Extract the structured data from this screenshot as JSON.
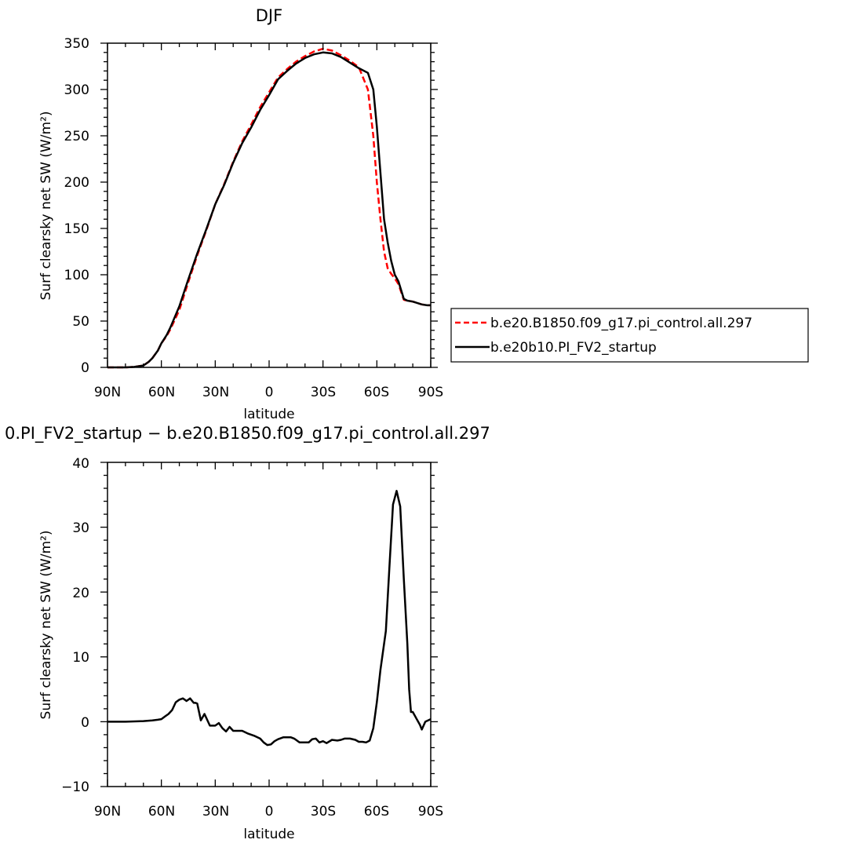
{
  "chart_data": [
    {
      "type": "line",
      "title": "DJF",
      "xlabel": "latitude",
      "ylabel": "Surf clearsky net SW (W/m²)",
      "xlim": [
        90,
        -90
      ],
      "ylim": [
        0,
        350
      ],
      "xticks": [
        90,
        60,
        30,
        0,
        -30,
        -60,
        -90
      ],
      "xtick_labels": [
        "90N",
        "60N",
        "30N",
        "0",
        "30S",
        "60S",
        "90S"
      ],
      "yticks": [
        0,
        50,
        100,
        150,
        200,
        250,
        300,
        350
      ],
      "ytick_labels": [
        "0",
        "50",
        "100",
        "150",
        "200",
        "250",
        "300",
        "350"
      ],
      "legend_position": "right",
      "series": [
        {
          "name": "b.e20.B1850.f09_g17.pi_control.all.297",
          "color": "#ff0000",
          "dashed": true,
          "x": [
            90,
            80,
            75,
            70,
            67,
            65,
            62,
            60,
            57,
            55,
            50,
            45,
            40,
            35,
            30,
            25,
            20,
            15,
            10,
            5,
            0,
            -5,
            -10,
            -15,
            -20,
            -25,
            -30,
            -35,
            -40,
            -45,
            -50,
            -55,
            -58,
            -60,
            -62,
            -64,
            -66,
            -68,
            -70,
            -72,
            -75,
            -77,
            -80,
            -85,
            -88,
            -90
          ],
          "y": [
            0,
            0,
            0.5,
            2,
            6,
            10,
            18,
            26,
            34,
            41,
            62,
            92,
            121,
            148,
            176,
            198,
            222,
            244,
            262,
            281,
            297,
            313,
            322,
            330,
            336,
            341,
            344,
            342,
            337,
            331,
            324,
            300,
            250,
            200,
            160,
            125,
            107,
            101,
            96,
            90,
            73,
            72,
            71,
            68,
            67,
            67
          ]
        },
        {
          "name": "b.e20b10.PI_FV2_startup",
          "color": "#000000",
          "dashed": false,
          "x": [
            90,
            80,
            75,
            70,
            67,
            65,
            62,
            60,
            57,
            55,
            50,
            45,
            40,
            35,
            30,
            25,
            20,
            15,
            10,
            5,
            0,
            -5,
            -10,
            -15,
            -20,
            -25,
            -30,
            -35,
            -40,
            -45,
            -50,
            -55,
            -58,
            -60,
            -62,
            -64,
            -66,
            -68,
            -70,
            -72,
            -75,
            -77,
            -80,
            -85,
            -88,
            -90
          ],
          "y": [
            0,
            0,
            0.5,
            2,
            6,
            10,
            18,
            26,
            35,
            43,
            66,
            95,
            123,
            149,
            176,
            197,
            221,
            242,
            259,
            278,
            294,
            311,
            320,
            328,
            334,
            338,
            340,
            339,
            335,
            329,
            323,
            318,
            300,
            260,
            210,
            160,
            135,
            115,
            100,
            93,
            74,
            72,
            71,
            68,
            67,
            67
          ]
        }
      ]
    },
    {
      "type": "line",
      "title": "0.PI_FV2_startup − b.e20.B1850.f09_g17.pi_control.all.297",
      "xlabel": "latitude",
      "ylabel": "Surf clearsky net SW (W/m²)",
      "xlim": [
        90,
        -90
      ],
      "ylim": [
        -10,
        40
      ],
      "xticks": [
        90,
        60,
        30,
        0,
        -30,
        -60,
        -90
      ],
      "xtick_labels": [
        "90N",
        "60N",
        "30N",
        "0",
        "30S",
        "60S",
        "90S"
      ],
      "yticks": [
        -10,
        0,
        10,
        20,
        30,
        40
      ],
      "ytick_labels": [
        "−10",
        "0",
        "10",
        "20",
        "30",
        "40"
      ],
      "series": [
        {
          "color": "#000000",
          "dashed": false,
          "x": [
            90,
            80,
            70,
            65,
            62,
            60,
            58,
            56,
            54,
            52,
            50,
            48,
            47,
            46,
            44,
            42,
            41,
            40,
            38,
            36,
            33,
            30,
            28,
            26,
            24,
            22,
            20,
            18,
            15,
            12,
            10,
            8,
            5,
            3,
            1,
            -1,
            -3,
            -5,
            -8,
            -12,
            -14,
            -17,
            -20,
            -22,
            -24,
            -26,
            -28,
            -30,
            -32,
            -35,
            -38,
            -40,
            -42,
            -45,
            -48,
            -50,
            -52,
            -54,
            -56,
            -58,
            -60,
            -62,
            -65,
            -67,
            -69,
            -71,
            -73,
            -75,
            -77,
            -78,
            -79,
            -80,
            -81,
            -82,
            -84,
            -85,
            -87,
            -90
          ],
          "y": [
            0,
            0,
            0.1,
            0.2,
            0.3,
            0.4,
            0.8,
            1.2,
            1.8,
            3.0,
            3.4,
            3.6,
            3.4,
            3.2,
            3.6,
            2.9,
            2.9,
            2.8,
            0.2,
            1.2,
            -0.6,
            -0.6,
            -0.2,
            -1.0,
            -1.5,
            -0.8,
            -1.4,
            -1.4,
            -1.4,
            -1.8,
            -2.0,
            -2.2,
            -2.6,
            -3.2,
            -3.6,
            -3.5,
            -3.0,
            -2.7,
            -2.4,
            -2.4,
            -2.6,
            -3.2,
            -3.2,
            -3.2,
            -2.7,
            -2.6,
            -3.2,
            -3.0,
            -3.3,
            -2.8,
            -2.9,
            -2.8,
            -2.6,
            -2.6,
            -2.8,
            -3.1,
            -3.1,
            -3.2,
            -2.9,
            -1.0,
            3.0,
            8.0,
            14.0,
            24.0,
            33.5,
            35.6,
            33.2,
            22.0,
            12.0,
            5.0,
            1.5,
            1.5,
            1.0,
            0.5,
            -0.5,
            -1.2,
            0.0,
            0.4
          ]
        }
      ]
    }
  ]
}
